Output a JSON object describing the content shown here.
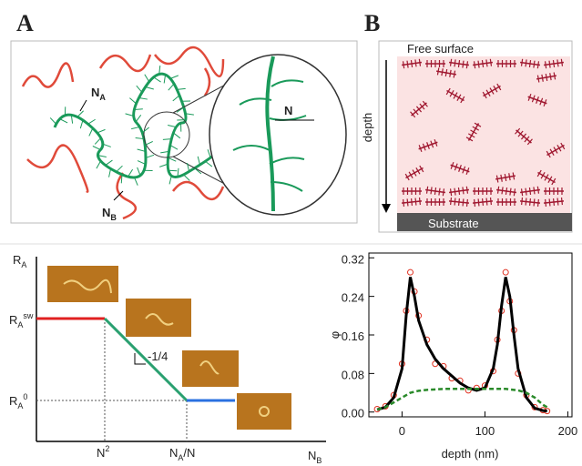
{
  "panel_a": {
    "letter": "A",
    "na": {
      "main": "N",
      "sub": "A"
    },
    "nb": {
      "main": "N",
      "sub": "B"
    },
    "n": "N"
  },
  "panel_b": {
    "letter": "B",
    "top": "Free surface",
    "depth": "depth",
    "bottom": "Substrate"
  },
  "scaling": {
    "y_axis": {
      "main": "R",
      "sub": "A"
    },
    "r_sw": {
      "main": "R",
      "sub": "A",
      "sup": "sw"
    },
    "r_0": {
      "main": "R",
      "sub": "A",
      "sup": "0"
    },
    "n2": {
      "main": "N",
      "sup": "2"
    },
    "na_n": {
      "main": "N",
      "sub": "A",
      "rest": "/N"
    },
    "x_axis": {
      "main": "N",
      "sub": "B"
    },
    "slope": "-1/4"
  },
  "chart_data": {
    "type": "line",
    "ylabel": "φ",
    "xlabel": "depth (nm)",
    "x": [
      -30,
      -20,
      -10,
      0,
      5,
      10,
      15,
      20,
      30,
      40,
      50,
      60,
      70,
      80,
      90,
      100,
      110,
      115,
      120,
      125,
      130,
      135,
      140,
      150,
      160,
      170,
      175
    ],
    "series": [
      {
        "color": "#e03020",
        "style": "markers",
        "values": [
          0.006,
          0.012,
          0.035,
          0.1,
          0.21,
          0.29,
          0.25,
          0.2,
          0.15,
          0.1,
          0.095,
          0.07,
          0.065,
          0.045,
          0.05,
          0.055,
          0.085,
          0.15,
          0.21,
          0.29,
          0.23,
          0.17,
          0.08,
          0.035,
          0.01,
          0.004,
          0.002
        ]
      },
      {
        "color": "#000000",
        "style": "line",
        "values": [
          0.005,
          0.01,
          0.03,
          0.09,
          0.2,
          0.28,
          0.24,
          0.19,
          0.14,
          0.11,
          0.09,
          0.075,
          0.06,
          0.05,
          0.045,
          0.05,
          0.09,
          0.14,
          0.22,
          0.28,
          0.24,
          0.16,
          0.09,
          0.03,
          0.008,
          0.003,
          0.002
        ]
      },
      {
        "color": "#2a8a2a",
        "style": "dashed",
        "values": [
          0.005,
          0.01,
          0.02,
          0.03,
          0.035,
          0.04,
          0.042,
          0.044,
          0.046,
          0.047,
          0.048,
          0.048,
          0.048,
          0.048,
          0.048,
          0.048,
          0.048,
          0.048,
          0.048,
          0.048,
          0.047,
          0.046,
          0.045,
          0.04,
          0.03,
          0.015,
          0.01
        ]
      }
    ],
    "xlim": [
      -40,
      205
    ],
    "ylim": [
      -0.01,
      0.33
    ],
    "xticks": [
      0,
      100,
      200
    ],
    "yticks": [
      {
        "value": 0,
        "label": "0.00"
      },
      0.08,
      0.16,
      0.24,
      0.32
    ]
  }
}
